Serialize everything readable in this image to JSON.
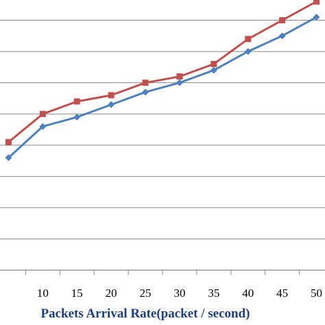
{
  "chart_data": {
    "type": "line",
    "xlabel": "Packets Arrival Rate(packet / second)",
    "x": [
      5,
      10,
      15,
      20,
      25,
      30,
      35,
      40,
      45,
      50
    ],
    "x_tick_labels": [
      "10",
      "15",
      "20",
      "25",
      "30",
      "35",
      "40",
      "45",
      "50"
    ],
    "xlim": [
      3.75,
      51.25
    ],
    "ylim": [
      0,
      9
    ],
    "grid": true,
    "legend": "none",
    "series": [
      {
        "values": [
          4.1,
          5.0,
          5.4,
          5.6,
          6.0,
          6.2,
          6.6,
          7.4,
          8.0,
          8.6
        ],
        "marker": "square",
        "color": "#C0504D"
      },
      {
        "values": [
          3.6,
          4.6,
          4.9,
          5.3,
          5.7,
          6.0,
          6.4,
          7.0,
          7.5,
          8.1
        ],
        "marker": "diamond",
        "color": "#4F81BD"
      }
    ],
    "colors": {
      "xlabel": "#1F3E7A",
      "grid": "#868686",
      "axis": "#868686"
    }
  }
}
